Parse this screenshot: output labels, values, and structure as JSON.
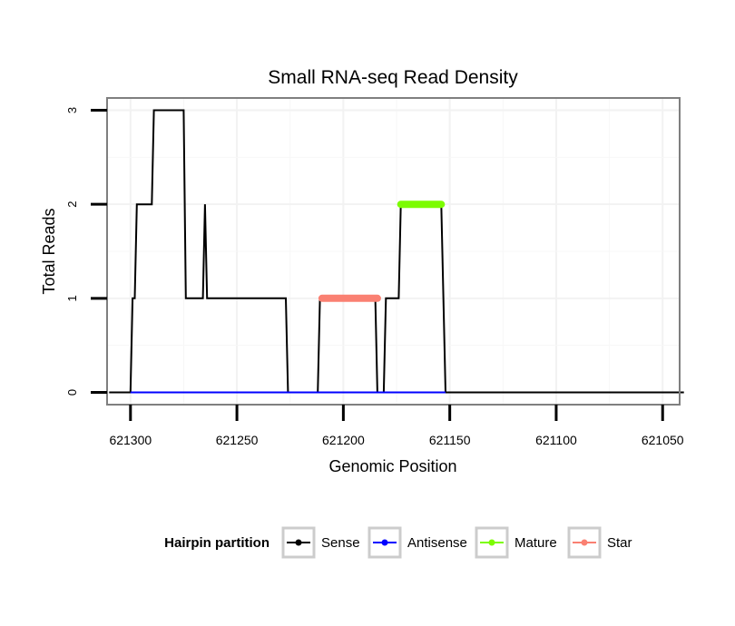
{
  "chart_data": {
    "type": "line",
    "title": "Small RNA-seq Read Density",
    "xlabel": "Genomic Position",
    "ylabel": "Total Reads",
    "xlim": [
      621311,
      621042
    ],
    "ylim": [
      -0.13,
      3.13
    ],
    "x_reversed": true,
    "grid": true,
    "x_ticks": [
      621300,
      621250,
      621200,
      621150,
      621100,
      621050
    ],
    "x_tick_labels": [
      "621300",
      "621250",
      "621200",
      "621150",
      "621100",
      "621050"
    ],
    "y_ticks": [
      0,
      1,
      2,
      3
    ],
    "y_tick_labels": [
      "0",
      "1",
      "2",
      "3"
    ],
    "legend": {
      "title": "Hairpin partition",
      "position": "bottom",
      "entries": [
        {
          "name": "Sense",
          "color": "#000000"
        },
        {
          "name": "Antisense",
          "color": "#0000ff"
        },
        {
          "name": "Mature",
          "color": "#7cfc00"
        },
        {
          "name": "Star",
          "color": "#fa8072"
        }
      ]
    },
    "series": [
      {
        "name": "Sense",
        "color": "#000000",
        "points": [
          [
            621310,
            0
          ],
          [
            621300,
            0
          ],
          [
            621299,
            1
          ],
          [
            621298,
            1
          ],
          [
            621297,
            2
          ],
          [
            621290,
            2
          ],
          [
            621289,
            3
          ],
          [
            621275,
            3
          ],
          [
            621274,
            1
          ],
          [
            621266,
            1
          ],
          [
            621265,
            2
          ],
          [
            621264,
            1
          ],
          [
            621227,
            1
          ],
          [
            621226,
            0
          ],
          [
            621212,
            0
          ],
          [
            621211,
            1
          ],
          [
            621185,
            1
          ],
          [
            621184,
            0
          ],
          [
            621181,
            0
          ],
          [
            621180,
            1
          ],
          [
            621174,
            1
          ],
          [
            621173,
            2
          ],
          [
            621154,
            2
          ],
          [
            621152,
            0
          ],
          [
            621040,
            0
          ]
        ]
      },
      {
        "name": "Antisense",
        "color": "#0000ff",
        "points": [
          [
            621300,
            0
          ],
          [
            621152,
            0
          ]
        ]
      },
      {
        "name": "Mature",
        "color": "#7cfc00",
        "points": [
          [
            621173,
            2
          ],
          [
            621154,
            2
          ]
        ]
      },
      {
        "name": "Star",
        "color": "#fa8072",
        "points": [
          [
            621210,
            1
          ],
          [
            621184,
            1
          ]
        ]
      }
    ]
  }
}
